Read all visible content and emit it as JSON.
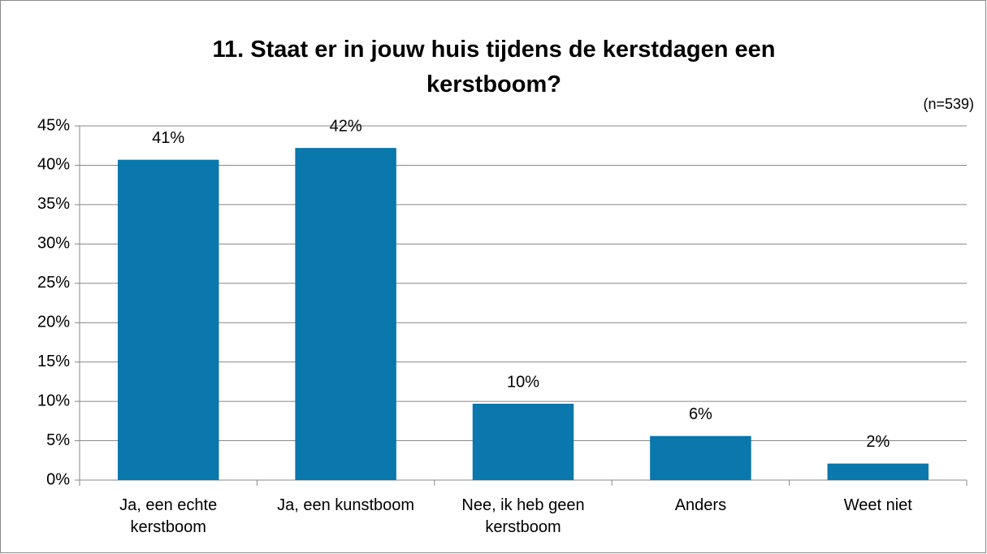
{
  "chart_data": {
    "type": "bar",
    "title": "11. Staat er in jouw huis tijdens de kerstdagen een kerstboom?",
    "annotation": "(n=539)",
    "categories": [
      "Ja, een echte kerstboom",
      "Ja, een kunstboom",
      "Nee, ik heb geen kerstboom",
      "Anders",
      "Weet niet"
    ],
    "values": [
      40.7,
      42.2,
      9.7,
      5.6,
      2.1
    ],
    "value_labels": [
      "41%",
      "42%",
      "10%",
      "6%",
      "2%"
    ],
    "color": "#0a77ad",
    "ylim": [
      0,
      45
    ],
    "yticks": [
      {
        "value": 0,
        "label": "0%"
      },
      {
        "value": 5,
        "label": "5%"
      },
      {
        "value": 10,
        "label": "10%"
      },
      {
        "value": 15,
        "label": "15%"
      },
      {
        "value": 20,
        "label": "20%"
      },
      {
        "value": 25,
        "label": "25%"
      },
      {
        "value": 30,
        "label": "30%"
      },
      {
        "value": 35,
        "label": "35%"
      },
      {
        "value": 40,
        "label": "40%"
      },
      {
        "value": 45,
        "label": "45%"
      }
    ],
    "grid": true
  }
}
